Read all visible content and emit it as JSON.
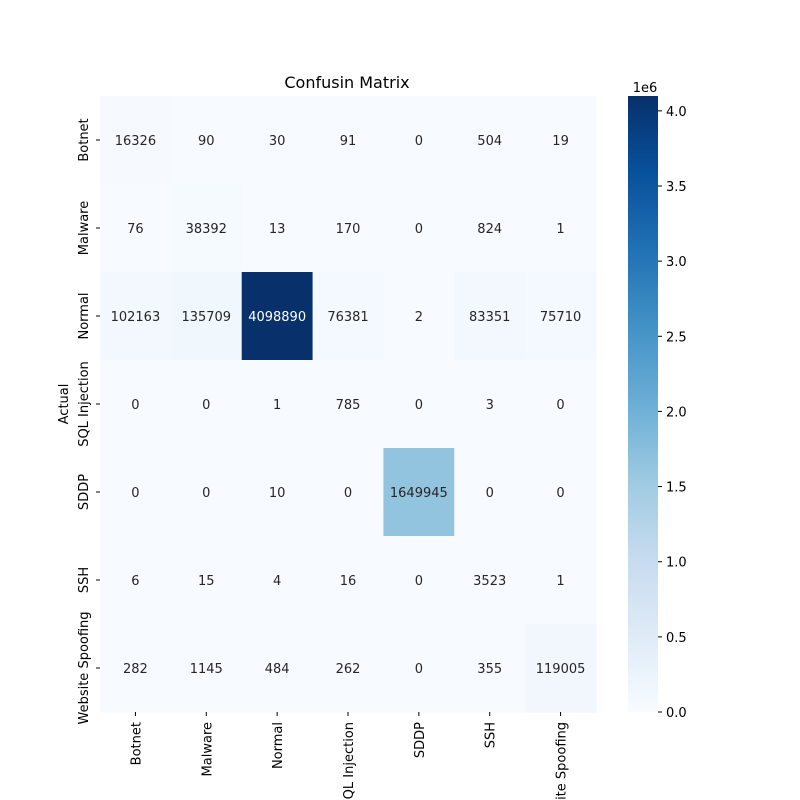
{
  "chart_data": {
    "type": "heatmap",
    "title": "Confusin Matrix",
    "xlabel": "",
    "ylabel": "Actual",
    "row_labels": [
      "Botnet",
      "Malware",
      "Normal",
      "SQL Injection",
      "SDDP",
      "SSH",
      "Website Spoofing"
    ],
    "col_labels": [
      "Botnet",
      "Malware",
      "Normal",
      "SQL Injection",
      "SDDP",
      "SSH",
      "Website Spoofing"
    ],
    "values": [
      [
        16326,
        90,
        30,
        91,
        0,
        504,
        19
      ],
      [
        76,
        38392,
        13,
        170,
        0,
        824,
        1
      ],
      [
        102163,
        135709,
        4098890,
        76381,
        2,
        83351,
        75710
      ],
      [
        0,
        0,
        1,
        785,
        0,
        3,
        0
      ],
      [
        0,
        0,
        10,
        0,
        1649945,
        0,
        0
      ],
      [
        6,
        15,
        4,
        16,
        0,
        3523,
        1
      ],
      [
        282,
        1145,
        484,
        262,
        0,
        355,
        119005
      ]
    ],
    "colormap": "Blues",
    "colorbar": {
      "range": [
        0,
        4098890
      ],
      "ticks": [
        0.0,
        0.5,
        1.0,
        1.5,
        2.0,
        2.5,
        3.0,
        3.5,
        4.0
      ],
      "tick_labels": [
        "0.0",
        "0.5",
        "1.0",
        "1.5",
        "2.0",
        "2.5",
        "3.0",
        "3.5",
        "4.0"
      ],
      "multiplier_label": "1e6",
      "scale": 1000000
    },
    "colors": {
      "blues_low": "#f7fbff",
      "blues_high": "#08306b",
      "text_light": "#ffffff",
      "text_dark": "#262626"
    }
  }
}
